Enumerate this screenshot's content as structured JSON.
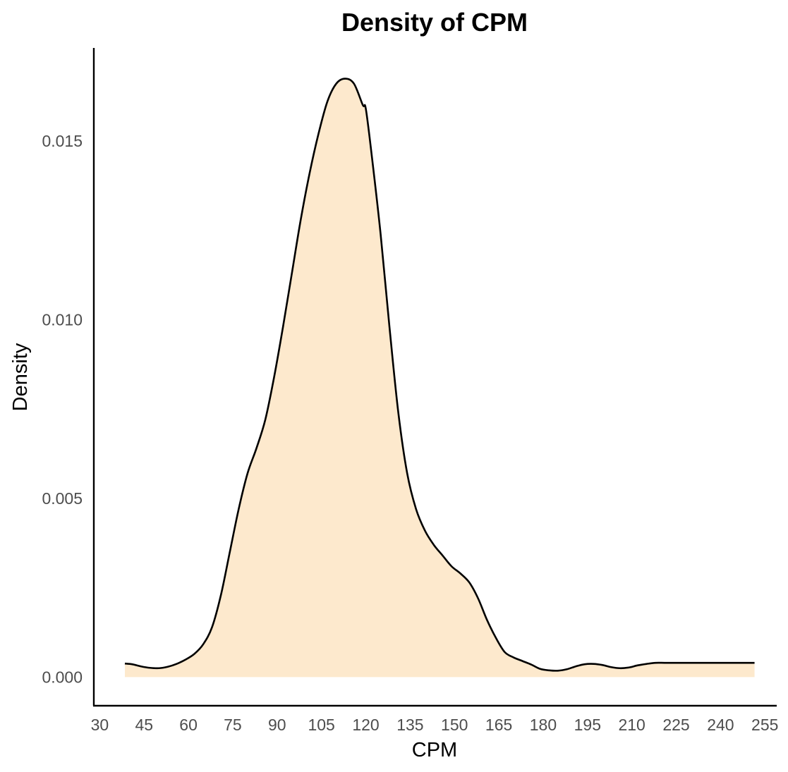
{
  "chart_data": {
    "type": "area",
    "title": "Density of CPM",
    "xlabel": "CPM",
    "ylabel": "Density",
    "xlim": [
      28,
      259
    ],
    "ylim": [
      -0.0008,
      0.0176
    ],
    "x_ticks": [
      30,
      45,
      60,
      75,
      90,
      105,
      120,
      135,
      150,
      165,
      180,
      195,
      210,
      225,
      240,
      255
    ],
    "x_tick_labels": [
      "30",
      "45",
      "60",
      "75",
      "90",
      "105",
      "120",
      "135",
      "150",
      "165",
      "180",
      "195",
      "210",
      "225",
      "240",
      "255"
    ],
    "y_ticks": [
      0.0,
      0.005,
      0.01,
      0.015
    ],
    "y_tick_labels": [
      "0.000",
      "0.005",
      "0.010",
      "0.015"
    ],
    "grid": false,
    "legend": "none",
    "fill_color": "#FDE9CD",
    "line_color": "#000000",
    "series": [
      {
        "x": [
          38.5,
          41,
          44,
          47,
          50,
          53,
          56,
          59,
          62,
          65,
          68,
          71,
          74,
          77,
          80,
          83,
          86,
          89,
          92,
          95,
          98,
          101,
          104,
          107,
          110,
          113,
          116,
          119,
          120,
          122,
          125,
          128,
          131,
          134,
          137,
          140,
          143,
          146,
          149,
          152,
          155,
          158,
          161,
          164,
          167,
          170,
          173,
          176,
          179,
          182,
          185,
          188,
          191,
          194,
          197,
          200,
          203,
          206,
          209,
          212,
          215,
          218,
          221,
          224,
          227,
          230,
          233,
          236,
          239,
          242,
          245,
          248,
          251.5
        ],
        "values": [
          0.00038,
          0.00036,
          0.0003,
          0.00026,
          0.00025,
          0.00029,
          0.00037,
          0.00049,
          0.00065,
          0.00092,
          0.0014,
          0.0023,
          0.0035,
          0.0047,
          0.0057,
          0.0064,
          0.0072,
          0.0084,
          0.0098,
          0.0113,
          0.0128,
          0.0141,
          0.0152,
          0.0161,
          0.0166,
          0.01674,
          0.0166,
          0.016,
          0.0159,
          0.0146,
          0.0124,
          0.0098,
          0.0074,
          0.0057,
          0.0047,
          0.0041,
          0.0037,
          0.0034,
          0.0031,
          0.0029,
          0.00265,
          0.0022,
          0.0016,
          0.0011,
          0.0007,
          0.00055,
          0.00045,
          0.00035,
          0.00023,
          0.00019,
          0.00018,
          0.00022,
          0.0003,
          0.00036,
          0.00037,
          0.00034,
          0.00028,
          0.00025,
          0.00027,
          0.00033,
          0.00037,
          0.0004,
          0.0004,
          0.0004,
          0.0004,
          0.0004,
          0.0004,
          0.0004,
          0.0004,
          0.0004,
          0.0004,
          0.0004,
          0.0004
        ]
      }
    ]
  }
}
